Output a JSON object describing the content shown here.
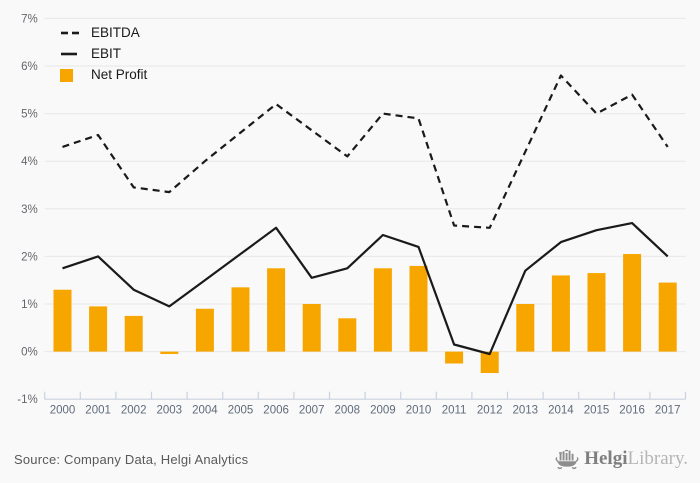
{
  "chart_data": {
    "type": "combo_bar_line",
    "title": "",
    "xlabel": "",
    "ylabel": "",
    "unit": "%",
    "categories": [
      "2000",
      "2001",
      "2002",
      "2003",
      "2004",
      "2005",
      "2006",
      "2007",
      "2008",
      "2009",
      "2010",
      "2011",
      "2012",
      "2013",
      "2014",
      "2015",
      "2016",
      "2017"
    ],
    "series": [
      {
        "name": "EBITDA",
        "render": "line",
        "line_style": "dashed",
        "color": "#1a1a1a",
        "values": [
          4.3,
          4.55,
          3.45,
          3.35,
          4.0,
          4.6,
          5.2,
          4.65,
          4.1,
          5.0,
          4.9,
          2.65,
          2.6,
          4.2,
          5.8,
          5.0,
          5.4,
          4.3
        ]
      },
      {
        "name": "EBIT",
        "render": "line",
        "line_style": "solid",
        "color": "#1a1a1a",
        "values": [
          1.75,
          2.0,
          1.3,
          0.95,
          1.5,
          2.05,
          2.6,
          1.55,
          1.75,
          2.45,
          2.2,
          0.15,
          -0.05,
          1.7,
          2.3,
          2.55,
          2.7,
          2.0
        ]
      },
      {
        "name": "Net Profit",
        "render": "bar",
        "color": "#f7a600",
        "values": [
          1.3,
          0.95,
          0.75,
          -0.05,
          0.9,
          1.35,
          1.75,
          1.0,
          0.7,
          1.75,
          1.8,
          -0.25,
          -0.45,
          1.0,
          1.6,
          1.65,
          2.05,
          1.45
        ]
      }
    ],
    "ylim": [
      -1,
      7
    ],
    "yticks": [
      {
        "label": "7%",
        "value": 7
      },
      {
        "label": "6%",
        "value": 6
      },
      {
        "label": "5%",
        "value": 5
      },
      {
        "label": "4%",
        "value": 4
      },
      {
        "label": "3%",
        "value": 3
      },
      {
        "label": "2%",
        "value": 2
      },
      {
        "label": "1%",
        "value": 1
      },
      {
        "label": "0%",
        "value": 0
      },
      {
        "label": "-1%",
        "value": -1
      }
    ],
    "grid": "horizontal",
    "legend_position": "top-left"
  },
  "footer": {
    "source": "Source: Company Data, Helgi Analytics",
    "logo_primary": "Helgi",
    "logo_secondary": "Library."
  },
  "colors": {
    "background": "#f9f9f9",
    "bar": "#f7a600",
    "line": "#1a1a1a",
    "gridline": "#e7e7e7",
    "axis_line": "#c9d2e0",
    "y_tick_label": "#63666c",
    "x_tick_label": "#5f6b7a",
    "source_text": "#595959",
    "logo_icon": "#8d8d8d"
  }
}
